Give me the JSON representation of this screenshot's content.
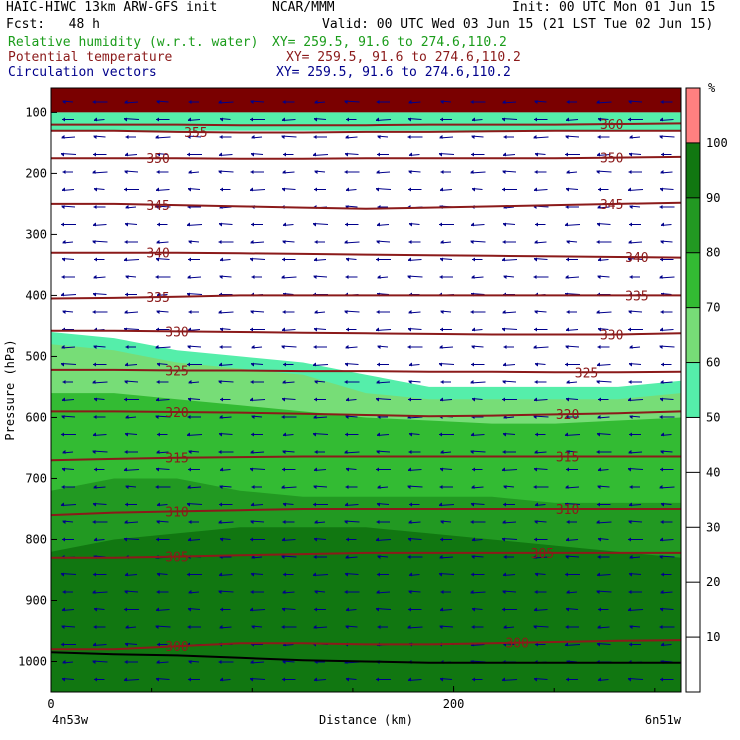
{
  "header": {
    "model": "HAIC-HIWC 13km ARW-GFS init",
    "org": "NCAR/MMM",
    "init": "Init: 00 UTC Mon 01 Jun 15",
    "fcst": "Fcst:   48 h",
    "valid": "Valid: 00 UTC Wed 03 Jun 15 (21 LST Tue 02 Jun 15)",
    "field1": "Relative humidity (w.r.t. water)",
    "field1_xy": "XY= 259.5, 91.6 to 274.6,110.2",
    "field2": "Potential temperature",
    "field2_xy": "XY= 259.5, 91.6 to 274.6,110.2",
    "field3": "Circulation vectors",
    "field3_xy": "XY= 259.5, 91.6 to 274.6,110.2"
  },
  "chart_data": {
    "type": "heatmap",
    "xlabel": "Distance (km)",
    "ylabel": "Pressure (hPa)",
    "x_ticks": [
      "0",
      "200"
    ],
    "x_end_labels": {
      "left": "4n53w",
      "right": "6n51w"
    },
    "y_ticks": [
      "100",
      "200",
      "300",
      "400",
      "500",
      "600",
      "700",
      "800",
      "900",
      "1000"
    ],
    "xlim": [
      0,
      313
    ],
    "ylim": [
      1050,
      60
    ],
    "colorbar": {
      "unit": "%",
      "levels": [
        "10",
        "20",
        "30",
        "40",
        "50",
        "60",
        "70",
        "80",
        "90",
        "100"
      ],
      "colors": [
        "#ffffff",
        "#ffffff",
        "#ffffff",
        "#ffffff",
        "#ffffff",
        "#55eeaa",
        "#77dd77",
        "#33bb33",
        "#229922",
        "#117711",
        "#ff8080"
      ]
    },
    "rh_layers": [
      {
        "name": "rh>90",
        "color": "#117711",
        "pressure_top": [
          820,
          800,
          790,
          780,
          780,
          780,
          790,
          800,
          810,
          820,
          830
        ],
        "pressure_bottom": [
          1000,
          1000,
          1000,
          1000,
          1000,
          1000,
          1000,
          1000,
          1000,
          1000,
          1000
        ]
      },
      {
        "name": "rh>80",
        "color": "#229922",
        "pressure_top": [
          720,
          700,
          700,
          720,
          730,
          730,
          730,
          730,
          740,
          740,
          740
        ],
        "pressure_bottom": [
          1000,
          1000,
          1000,
          1000,
          1000,
          1000,
          1000,
          1000,
          1000,
          1000,
          1000
        ]
      },
      {
        "name": "rh>70",
        "color": "#33bb33",
        "pressure_top": [
          560,
          560,
          570,
          580,
          590,
          600,
          605,
          610,
          610,
          605,
          600
        ],
        "pressure_bottom": [
          1000,
          1000,
          1000,
          1000,
          1000,
          1000,
          1000,
          1000,
          1000,
          1000,
          1000
        ]
      },
      {
        "name": "rh>60",
        "color": "#77dd77",
        "pressure_top": [
          480,
          490,
          510,
          520,
          530,
          560,
          570,
          570,
          570,
          570,
          560
        ],
        "pressure_bottom": [
          1000,
          1000,
          1000,
          1000,
          1000,
          1000,
          1000,
          1000,
          1000,
          1000,
          1000
        ]
      },
      {
        "name": "rh>50",
        "color": "#55eeaa",
        "pressure_top": [
          460,
          470,
          490,
          500,
          510,
          530,
          550,
          550,
          550,
          550,
          540
        ],
        "pressure_bottom": [
          1000,
          1000,
          1000,
          1000,
          1000,
          1000,
          1000,
          1000,
          1000,
          1000,
          1000
        ]
      }
    ],
    "upper_bands": [
      {
        "name": "rh>100 top",
        "color": "#7a0000",
        "p_top": 60,
        "p_bottom": 100
      },
      {
        "name": "upper-moist",
        "color": "#55eeaa",
        "p_top": 100,
        "p_bottom": 130
      }
    ],
    "theta_isolines": [
      {
        "value": "355",
        "pressures": [
          130,
          130,
          132,
          133,
          133,
          132,
          132,
          131,
          130,
          130,
          130
        ],
        "label_positions": [
          0.23
        ]
      },
      {
        "value": "360",
        "pressures": [
          120,
          120,
          120,
          121,
          121,
          121,
          120,
          120,
          120,
          119,
          118
        ],
        "label_positions": [
          0.89
        ]
      },
      {
        "value": "350",
        "pressures": [
          175,
          175,
          175,
          176,
          176,
          175,
          175,
          175,
          175,
          174,
          173
        ],
        "label_positions": [
          0.17,
          0.89
        ]
      },
      {
        "value": "345",
        "pressures": [
          250,
          250,
          252,
          254,
          256,
          258,
          256,
          254,
          252,
          250,
          248
        ],
        "label_positions": [
          0.17,
          0.89
        ]
      },
      {
        "value": "340",
        "pressures": [
          330,
          330,
          330,
          331,
          332,
          333,
          334,
          335,
          336,
          337,
          338
        ],
        "label_positions": [
          0.17,
          0.93
        ]
      },
      {
        "value": "335",
        "pressures": [
          405,
          404,
          402,
          400,
          400,
          400,
          400,
          400,
          400,
          400,
          400
        ],
        "label_positions": [
          0.17,
          0.93
        ]
      },
      {
        "value": "330",
        "pressures": [
          458,
          458,
          459,
          460,
          461,
          462,
          463,
          464,
          464,
          464,
          462
        ],
        "label_positions": [
          0.2,
          0.89
        ]
      },
      {
        "value": "325",
        "pressures": [
          522,
          522,
          523,
          523,
          524,
          524,
          525,
          525,
          526,
          526,
          525
        ],
        "label_positions": [
          0.2,
          0.85
        ]
      },
      {
        "value": "320",
        "pressures": [
          590,
          590,
          591,
          592,
          594,
          596,
          598,
          597,
          595,
          593,
          590
        ],
        "label_positions": [
          0.2,
          0.82
        ]
      },
      {
        "value": "315",
        "pressures": [
          670,
          668,
          666,
          665,
          664,
          664,
          664,
          664,
          664,
          664,
          664
        ],
        "label_positions": [
          0.2,
          0.82
        ]
      },
      {
        "value": "310",
        "pressures": [
          760,
          756,
          754,
          752,
          750,
          750,
          750,
          750,
          750,
          750,
          750
        ],
        "label_positions": [
          0.2,
          0.82
        ]
      },
      {
        "value": "305",
        "pressures": [
          830,
          830,
          828,
          826,
          824,
          822,
          822,
          822,
          822,
          822,
          822
        ],
        "label_positions": [
          0.2,
          0.78
        ]
      },
      {
        "value": "300",
        "pressures": [
          980,
          980,
          975,
          970,
          970,
          972,
          972,
          970,
          968,
          966,
          965
        ],
        "label_positions": [
          0.2,
          0.74
        ]
      }
    ],
    "terrain_pressures": [
      985,
      988,
      990,
      994,
      998,
      1000,
      1002,
      1002,
      1002,
      1002,
      1002
    ]
  }
}
